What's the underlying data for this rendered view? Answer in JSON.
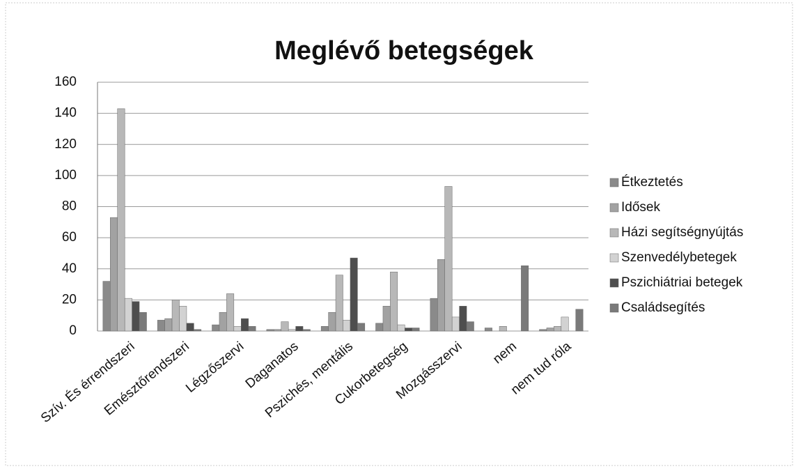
{
  "chart_data": {
    "type": "bar",
    "title": "Meglévő betegségek",
    "categories": [
      "Szív. És érrendszeri",
      "Emésztőrendszeri",
      "Légzőszervi",
      "Daganatos",
      "Pszichés, mentális",
      "Cukorbetegség",
      "Mozgásszervi",
      "nem",
      "nem tud róla"
    ],
    "series": [
      {
        "name": "Étkeztetés",
        "color": "#8a8a8a",
        "values": [
          32,
          7,
          4,
          1,
          3,
          5,
          21,
          2,
          1
        ]
      },
      {
        "name": "Idősek",
        "color": "#a2a2a2",
        "values": [
          73,
          8,
          12,
          1,
          12,
          16,
          46,
          0,
          2
        ]
      },
      {
        "name": "Házi segítségnyújtás",
        "color": "#b8b8b8",
        "values": [
          143,
          20,
          24,
          6,
          36,
          38,
          93,
          3,
          3
        ]
      },
      {
        "name": "Szenvedélybetegek",
        "color": "#d2d2d2",
        "values": [
          21,
          16,
          3,
          1,
          7,
          4,
          9,
          0,
          9
        ]
      },
      {
        "name": "Pszichiátriai betegek",
        "color": "#4e4e4e",
        "values": [
          19,
          5,
          8,
          3,
          47,
          2,
          16,
          0,
          0
        ]
      },
      {
        "name": "Családsegítés",
        "color": "#7a7a7a",
        "values": [
          12,
          1,
          3,
          1,
          5,
          2,
          6,
          42,
          14
        ]
      }
    ],
    "ylim": [
      0,
      160
    ],
    "yticks": [
      0,
      20,
      40,
      60,
      80,
      100,
      120,
      140,
      160
    ],
    "grid": true,
    "legend": "right"
  }
}
